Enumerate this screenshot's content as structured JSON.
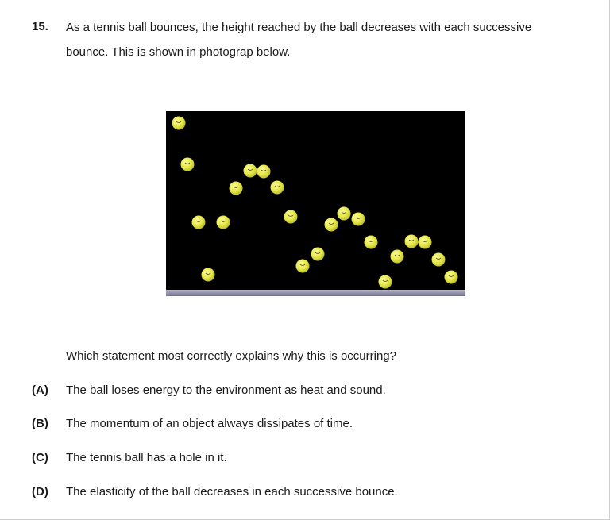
{
  "question": {
    "number": "15.",
    "text_line1": "As a tennis ball bounces, the height reached by the ball decreases with each successive",
    "text_line2": "bounce. This is shown in photograp below.",
    "prompt": "Which statement most correctly explains why this is occurring?"
  },
  "options": [
    {
      "letter": "(A)",
      "text": "The ball loses energy to the environment as heat and sound."
    },
    {
      "letter": "(B)",
      "text": "The momentum of an object always dissipates of time."
    },
    {
      "letter": "(C)",
      "text": "The tennis ball has a hole in it."
    },
    {
      "letter": "(D)",
      "text": "The elasticity of the ball decreases in each successive bounce."
    }
  ],
  "colors": {
    "photo_background": "#000000",
    "ball": "#e6e84a",
    "floor": "#8a8aa6"
  }
}
